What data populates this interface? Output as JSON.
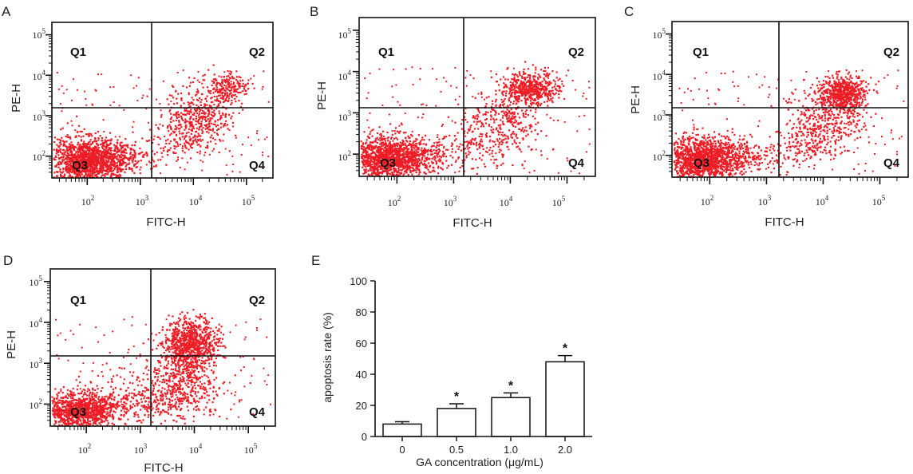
{
  "colors": {
    "dot": "#ee1c25",
    "axis": "#111111",
    "bar_fill": "#ffffff"
  },
  "flow_common": {
    "x_title": "FITC-H",
    "y_title": "PE-H",
    "y_ticks": [
      {
        "base": "10",
        "exp": "2"
      },
      {
        "base": "10",
        "exp": "3"
      },
      {
        "base": "10",
        "exp": "4"
      },
      {
        "base": "10",
        "exp": "5"
      }
    ],
    "x_ticks": [
      {
        "base": "10",
        "exp": "2"
      },
      {
        "base": "10",
        "exp": "3"
      },
      {
        "base": "10",
        "exp": "4"
      },
      {
        "base": "10",
        "exp": "5"
      }
    ],
    "quadrants": [
      "Q1",
      "Q2",
      "Q3",
      "Q4"
    ]
  },
  "panels": [
    {
      "letter": "A"
    },
    {
      "letter": "B"
    },
    {
      "letter": "C"
    },
    {
      "letter": "D"
    }
  ],
  "chart_data": {
    "type": "bar",
    "letter": "E",
    "categories": [
      "0",
      "0.5",
      "1.0",
      "2.0"
    ],
    "values": [
      8,
      18,
      25,
      48
    ],
    "errors": [
      1.5,
      3,
      3,
      4
    ],
    "significance": [
      "",
      "*",
      "*",
      "*"
    ],
    "ylim": [
      0,
      100
    ],
    "yticks": [
      "0",
      "20",
      "40",
      "60",
      "80",
      "100"
    ],
    "xlabel": "GA concentration (μg/mL)",
    "ylabel": "apoptosis rate (%)"
  }
}
